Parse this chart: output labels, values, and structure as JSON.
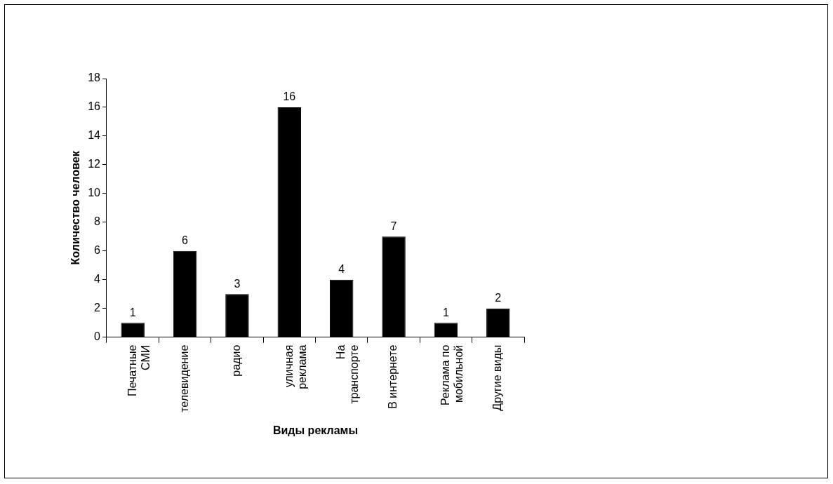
{
  "chart_data": {
    "type": "bar",
    "categories": [
      "Печатные\nСМИ",
      "телевидение",
      "радио",
      "уличная\nреклама",
      "На\nтранспорте",
      "В интернете",
      "Реклама по\nмобильной",
      "Другие виды"
    ],
    "values": [
      1,
      6,
      3,
      16,
      4,
      7,
      1,
      2
    ],
    "color": "#000000",
    "xlabel": "Виды рекламы",
    "ylabel": "Количество человек",
    "ylim": [
      0,
      18
    ],
    "yticks": [
      0,
      2,
      4,
      6,
      8,
      10,
      12,
      14,
      16,
      18
    ],
    "data_labels": true,
    "grid": false,
    "legend": false
  }
}
